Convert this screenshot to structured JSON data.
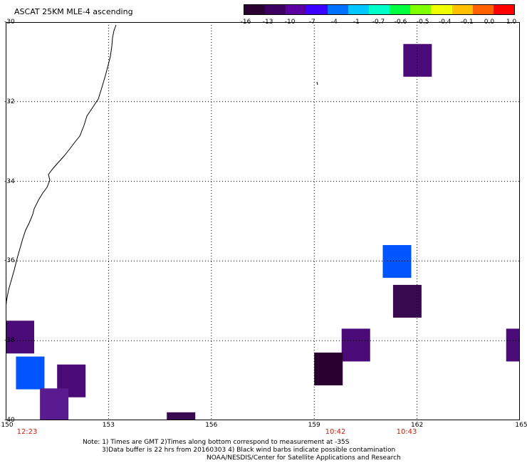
{
  "title": "ASCAT 25KM MLE-4 ascending",
  "colorbar": {
    "ticks": [
      "-16",
      "-13",
      "-10",
      "-7",
      "-4",
      "-1",
      "-0.7",
      "-0.6",
      "-0.5",
      "-0.4",
      "-0.1",
      "0.0",
      "1.0"
    ],
    "colors": [
      "#2a0030",
      "#3e0060",
      "#5a00a0",
      "#3c00ff",
      "#0070ff",
      "#00c8ff",
      "#00ffc8",
      "#00ff40",
      "#80ff00",
      "#f0ff00",
      "#ffc000",
      "#ff6000",
      "#ff0000"
    ]
  },
  "map": {
    "lon_labels": [
      "150",
      "153",
      "156",
      "159",
      "162",
      "165"
    ],
    "lat_labels": [
      "-30",
      "-32",
      "-34",
      "-36",
      "-38",
      "-40"
    ],
    "time_labels": [
      "12:23",
      "10:42",
      "10:43"
    ],
    "gridline_color": "#000000",
    "cells": [
      {
        "lon": 161.6,
        "lat": -30.55,
        "color": "#4a0a78"
      },
      {
        "lon": 161.0,
        "lat": -35.6,
        "color": "#0055ff"
      },
      {
        "lon": 161.3,
        "lat": -36.6,
        "color": "#3a0a50"
      },
      {
        "lon": 150.0,
        "lat": -37.5,
        "color": "#4a0a78"
      },
      {
        "lon": 164.6,
        "lat": -37.7,
        "color": "#4a0a78"
      },
      {
        "lon": 159.8,
        "lat": -37.7,
        "color": "#4a0a78"
      },
      {
        "lon": 159.0,
        "lat": -38.3,
        "color": "#2a0030"
      },
      {
        "lon": 150.3,
        "lat": -38.4,
        "color": "#0055ff"
      },
      {
        "lon": 151.5,
        "lat": -38.6,
        "color": "#4a0a78"
      },
      {
        "lon": 151.0,
        "lat": -39.2,
        "color": "#5a1a90"
      },
      {
        "lon": 154.7,
        "lat": -39.8,
        "color": "#3a0a50"
      }
    ]
  },
  "notes": {
    "line1": "Note: 1) Times are GMT 2)Times along bottom correspond to measurement at -35S",
    "line2": "3)Data buffer is 22 hrs from 20160303 4) Black wind barbs indicate possible contamination",
    "line3": "NOAA/NESDIS/Center for Satellite Applications and Research"
  }
}
